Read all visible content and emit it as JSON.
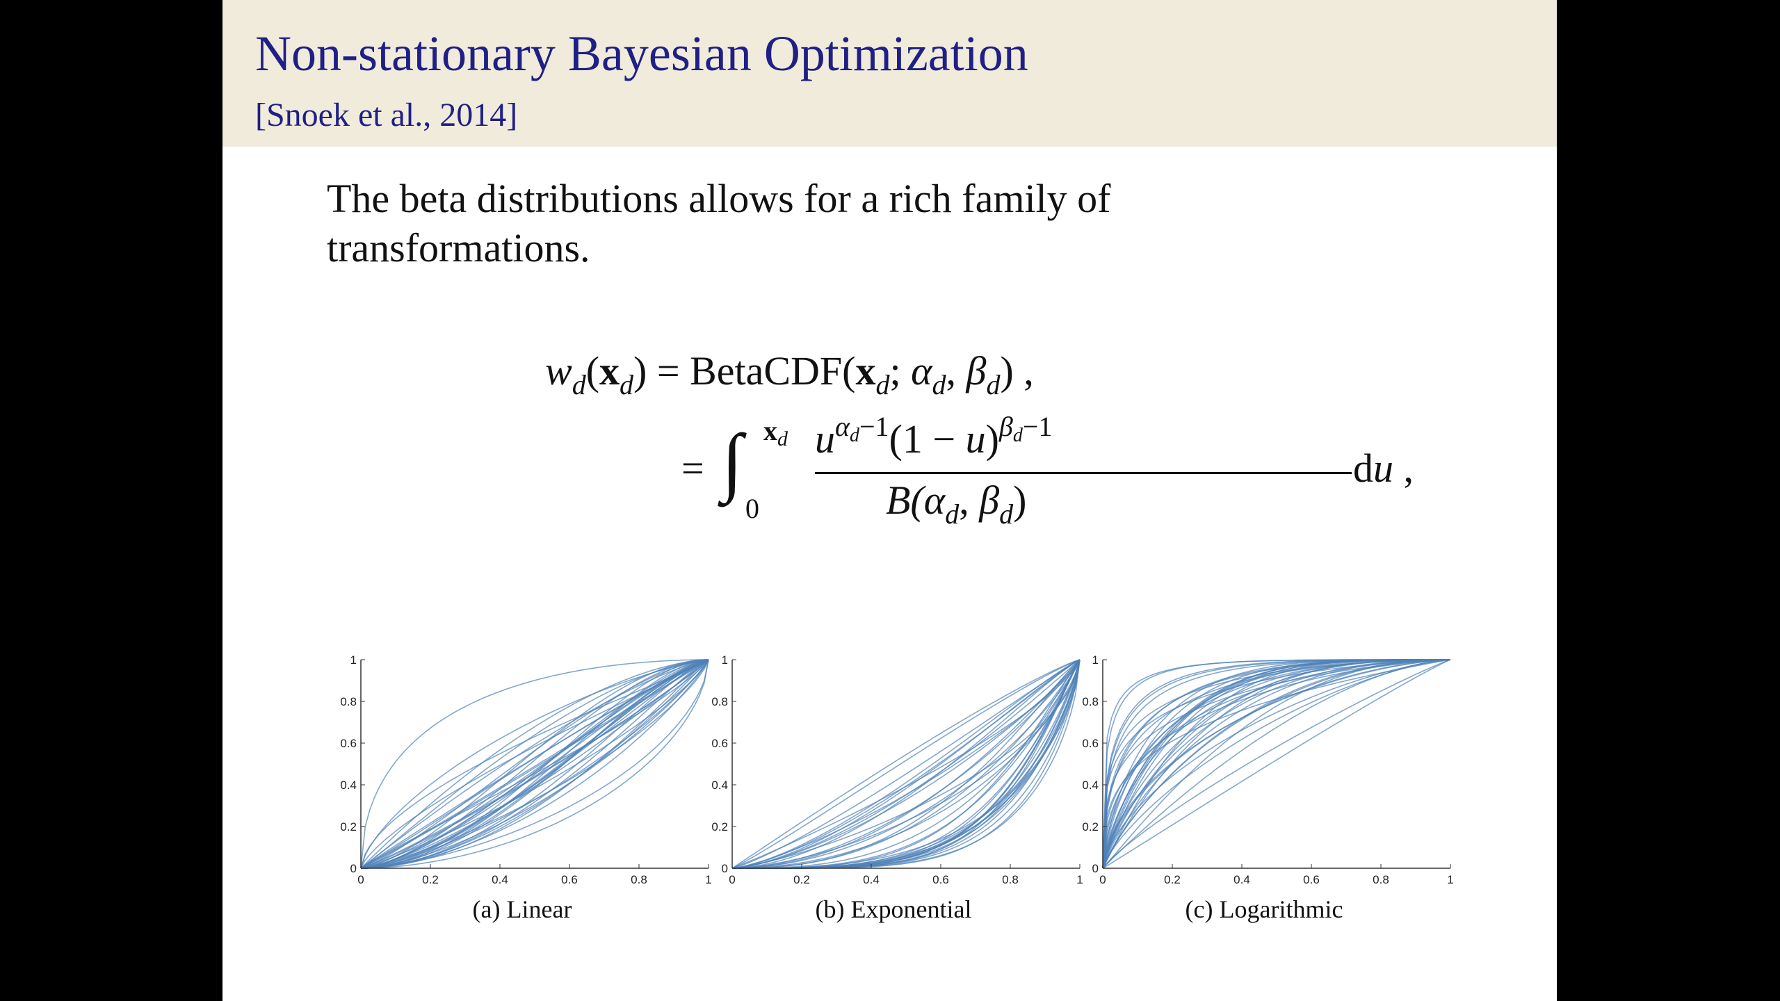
{
  "header": {
    "title": "Non-stationary Bayesian Optimization",
    "citation": "[Snoek et al., 2014]"
  },
  "body": {
    "lines": [
      "The beta distributions allows for a rich family of",
      "transformations."
    ]
  },
  "equation": {
    "line1": [
      "w",
      "d",
      "(",
      "x",
      "d",
      ") = BetaCDF(",
      "x",
      "d",
      ";",
      "α",
      "d",
      ",",
      "β",
      "d",
      ") ,"
    ],
    "line2": [
      "=",
      "∫",
      "x",
      "d",
      "0",
      "u",
      "α",
      "d",
      "−1",
      "(1 − ",
      "u",
      ")",
      "β",
      "d",
      "−1",
      "B(",
      "α",
      "d",
      ",",
      "β",
      "d",
      ")",
      "d",
      "u",
      ","
    ]
  },
  "figures": [
    {
      "caption": "(a) Linear",
      "xlim": [
        0,
        1
      ],
      "ylim": [
        0,
        1
      ],
      "xticks": [
        0,
        0.2,
        0.4,
        0.6,
        0.8,
        1
      ],
      "yticks": [
        0,
        0.2,
        0.4,
        0.6,
        0.8,
        1
      ]
    },
    {
      "caption": "(b) Exponential",
      "xlim": [
        0,
        1
      ],
      "ylim": [
        0,
        1
      ],
      "xticks": [
        0,
        0.2,
        0.4,
        0.6,
        0.8,
        1
      ],
      "yticks": [
        0,
        0.2,
        0.4,
        0.6,
        0.8,
        1
      ]
    },
    {
      "caption": "(c) Logarithmic",
      "xlim": [
        0,
        1
      ],
      "ylim": [
        0,
        1
      ],
      "xticks": [
        0,
        0.2,
        0.4,
        0.6,
        0.8,
        1
      ],
      "yticks": [
        0,
        0.2,
        0.4,
        0.6,
        0.8,
        1
      ]
    }
  ]
}
